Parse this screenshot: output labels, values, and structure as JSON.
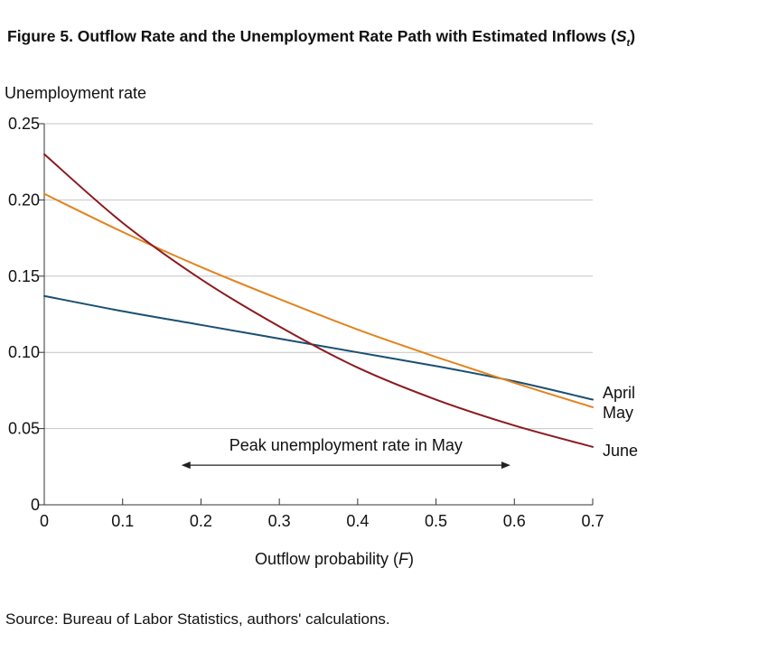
{
  "figure": {
    "title_prefix": "Figure 5. Outflow Rate and the Unemployment Rate Path with Estimated Inflows (",
    "title_symbol": "S",
    "title_subscript": "t",
    "title_suffix": ")",
    "source": "Source: Bureau of Labor Statistics, authors' calculations."
  },
  "chart_data": {
    "type": "line",
    "title": "Figure 5. Outflow Rate and the Unemployment Rate Path with Estimated Inflows (St)",
    "ylabel": "Unemployment rate",
    "xlabel_prefix": "Outflow probability (",
    "xlabel_symbol": "F",
    "xlabel_suffix": ")",
    "xlim": [
      0,
      0.7
    ],
    "ylim": [
      0,
      0.25
    ],
    "x_ticks": [
      0,
      0.1,
      0.2,
      0.3,
      0.4,
      0.5,
      0.6,
      0.7
    ],
    "x_tick_labels": [
      "0",
      "0.1",
      "0.2",
      "0.3",
      "0.4",
      "0.5",
      "0.6",
      "0.7"
    ],
    "y_ticks": [
      0,
      0.05,
      0.1,
      0.15,
      0.2,
      0.25
    ],
    "y_tick_labels": [
      "0",
      "0.05",
      "0.10",
      "0.15",
      "0.20",
      "0.25"
    ],
    "grid": "horizontal",
    "x": [
      0,
      0.1,
      0.2,
      0.3,
      0.4,
      0.5,
      0.6,
      0.7
    ],
    "series": [
      {
        "name": "April",
        "color": "#1b4f72",
        "values": [
          0.137,
          0.127,
          0.118,
          0.109,
          0.1,
          0.091,
          0.081,
          0.069
        ]
      },
      {
        "name": "May",
        "color": "#e3831e",
        "values": [
          0.204,
          0.179,
          0.156,
          0.135,
          0.115,
          0.097,
          0.08,
          0.064
        ]
      },
      {
        "name": "June",
        "color": "#8b1a1f",
        "values": [
          0.23,
          0.185,
          0.148,
          0.117,
          0.09,
          0.069,
          0.052,
          0.038
        ]
      }
    ],
    "annotation": {
      "text": "Peak unemployment rate in May",
      "x_start": 0.175,
      "x_end": 0.595,
      "y": 0.026,
      "color": "#222222"
    }
  }
}
